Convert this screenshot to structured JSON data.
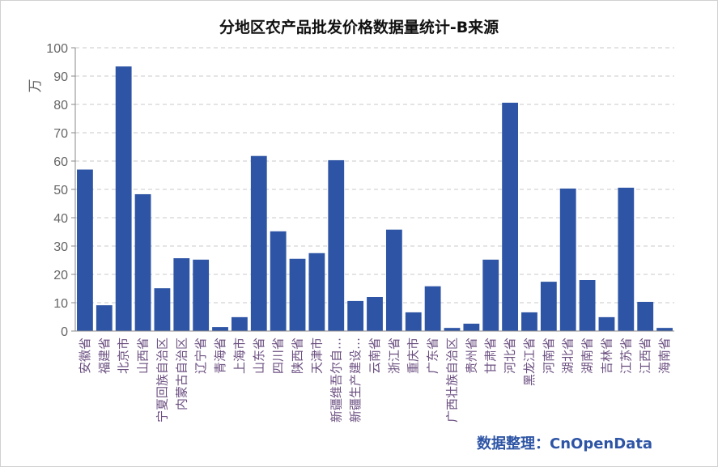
{
  "chart_data": {
    "type": "bar",
    "title": "分地区农产品批发价格数据量统计-B来源",
    "ylabel": "万",
    "xlabel": "",
    "ylim": [
      0,
      100
    ],
    "yticks": [
      0,
      10,
      20,
      30,
      40,
      50,
      60,
      70,
      80,
      90,
      100
    ],
    "grid": true,
    "bar_color": "#2e55a5",
    "categories": [
      "安徽省",
      "福建省",
      "北京市",
      "山西省",
      "宁夏回族自治区",
      "内蒙古自治区",
      "辽宁省",
      "青海省",
      "上海市",
      "山东省",
      "四川省",
      "陕西省",
      "天津市",
      "新疆维吾尔自…",
      "新疆生产建设…",
      "云南省",
      "浙江省",
      "重庆市",
      "广东省",
      "广西壮族自治区",
      "贵州省",
      "甘肃省",
      "河北省",
      "黑龙江省",
      "河南省",
      "湖北省",
      "湖南省",
      "吉林省",
      "江苏省",
      "江西省",
      "海南省"
    ],
    "values": [
      57,
      9.1,
      93.4,
      48.3,
      15.1,
      25.7,
      25.2,
      1.4,
      4.9,
      61.8,
      35.2,
      25.5,
      27.5,
      60.3,
      10.6,
      12,
      35.8,
      6.6,
      15.8,
      1.1,
      2.6,
      25.2,
      80.6,
      6.6,
      17.4,
      50.3,
      18,
      4.9,
      50.6,
      10.3,
      1.1
    ]
  },
  "credit": "数据整理：CnOpenData"
}
